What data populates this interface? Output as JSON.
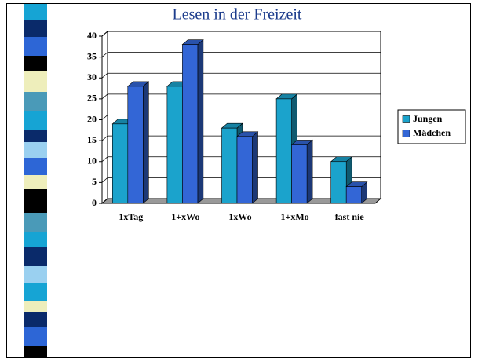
{
  "chart_data": {
    "type": "bar3d",
    "title": "Lesen in der Freizeit",
    "categories": [
      "1xTag",
      "1+xWo",
      "1xWo",
      "1+xMo",
      "fast nie"
    ],
    "series": [
      {
        "name": "Jungen",
        "color": "#1ba3cc",
        "values": [
          19,
          28,
          18,
          25,
          10
        ]
      },
      {
        "name": "Mädchen",
        "color": "#3366d6",
        "values": [
          28,
          38,
          16,
          14,
          4
        ]
      }
    ],
    "ylim": [
      0,
      40
    ],
    "yticks": [
      0,
      5,
      10,
      15,
      20,
      25,
      30,
      35,
      40
    ],
    "grid": true,
    "legend": "right"
  }
}
